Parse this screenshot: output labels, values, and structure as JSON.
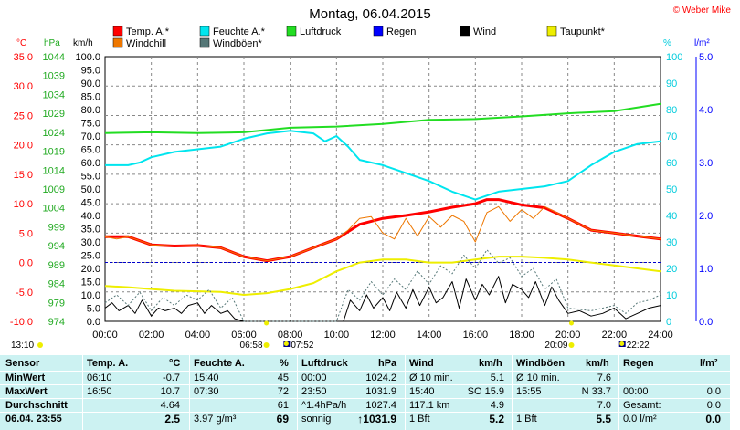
{
  "chart_data": {
    "type": "line",
    "title": "Montag, 06.04.2015",
    "watermark": "© Weber Mike",
    "axis_units": {
      "temp": "°C",
      "pressure": "hPa",
      "wind": "km/h",
      "humidity": "%",
      "rain": "l/m²"
    },
    "x_ticks": [
      "00:00",
      "02:00",
      "04:00",
      "06:00",
      "08:00",
      "10:00",
      "12:00",
      "14:00",
      "16:00",
      "18:00",
      "20:00",
      "22:00",
      "24:00"
    ],
    "y_temp_ticks": [
      "35.0",
      "30.0",
      "25.0",
      "20.0",
      "15.0",
      "10.0",
      "5.0",
      "0.0",
      "-5.0",
      "-10.0"
    ],
    "y_temp_range": [
      -10,
      35
    ],
    "y_pressure_ticks": [
      "1044",
      "1039",
      "1034",
      "1029",
      "1024",
      "1019",
      "1014",
      "1009",
      "1004",
      "999",
      "994",
      "989",
      "984",
      "979",
      "974"
    ],
    "y_pressure_range": [
      974,
      1044
    ],
    "y_wind_ticks": [
      "100.0",
      "95.0",
      "90.0",
      "85.0",
      "80.0",
      "75.0",
      "70.0",
      "65.0",
      "60.0",
      "55.0",
      "50.0",
      "45.0",
      "40.0",
      "35.0",
      "30.0",
      "25.0",
      "20.0",
      "15.0",
      "10.0",
      "5.0",
      "0.0"
    ],
    "y_wind_range": [
      0,
      100
    ],
    "y_humidity_ticks": [
      "100",
      "90",
      "80",
      "70",
      "60",
      "50",
      "40",
      "30",
      "20",
      "10",
      "0"
    ],
    "y_humidity_range": [
      0,
      100
    ],
    "y_rain_ticks": [
      "5.0",
      "4.0",
      "3.0",
      "2.0",
      "1.0",
      "0.0"
    ],
    "y_rain_range": [
      0,
      5
    ],
    "zero_line_temp": 0,
    "legend": [
      {
        "name": "Temp. A.*",
        "color": "#ff0000"
      },
      {
        "name": "Feuchte A.*",
        "color": "#00e5ee"
      },
      {
        "name": "Luftdruck",
        "color": "#22dd22"
      },
      {
        "name": "Regen",
        "color": "#0000ff"
      },
      {
        "name": "Wind",
        "color": "#000000"
      },
      {
        "name": "Taupunkt*",
        "color": "#eeee00"
      },
      {
        "name": "Windchill",
        "color": "#ee7700"
      },
      {
        "name": "Windböen*",
        "color": "#557777"
      }
    ],
    "series": [
      {
        "name": "Temp. A.*",
        "axis": "temp",
        "color": "#ff0000",
        "width": 3,
        "x": [
          0,
          1,
          2,
          3,
          4,
          5,
          6,
          7,
          8,
          9,
          10,
          11,
          12,
          13,
          14,
          15,
          16,
          16.5,
          17,
          18,
          19,
          20,
          21,
          22,
          23,
          24
        ],
        "y": [
          4.4,
          4.4,
          3.0,
          2.8,
          2.9,
          2.5,
          1.0,
          0.3,
          1.0,
          2.5,
          4.0,
          6.5,
          7.5,
          8.0,
          8.6,
          9.4,
          10.0,
          10.7,
          10.7,
          9.8,
          9.3,
          7.5,
          5.5,
          5.0,
          4.5,
          4.0
        ]
      },
      {
        "name": "Windchill",
        "axis": "temp",
        "color": "#ee7700",
        "width": 1,
        "x": [
          0,
          0.5,
          1,
          2,
          3,
          4,
          5,
          6,
          7,
          8,
          9,
          10,
          10.5,
          11,
          11.5,
          12,
          12.5,
          13,
          13.5,
          14,
          14.5,
          15,
          15.5,
          16,
          16.5,
          17,
          17.5,
          18,
          18.5,
          19,
          19.5,
          20,
          21,
          22,
          23,
          24
        ],
        "y": [
          4.4,
          4.0,
          4.4,
          3.0,
          2.8,
          2.9,
          2.5,
          1.0,
          0.3,
          1.0,
          2.5,
          4.0,
          5.5,
          7.5,
          7.8,
          5.0,
          4.0,
          7.5,
          4.5,
          7.8,
          6.0,
          8.0,
          7.0,
          3.5,
          8.5,
          9.5,
          7.0,
          9.0,
          7.5,
          9.5,
          8.5,
          7.5,
          5.5,
          5.0,
          4.5,
          4.0
        ]
      },
      {
        "name": "Taupunkt*",
        "axis": "temp",
        "color": "#eeee00",
        "width": 2,
        "x": [
          0,
          1,
          2,
          3,
          4,
          5,
          6,
          7,
          8,
          9,
          10,
          11,
          12,
          13,
          14,
          15,
          16,
          17,
          18,
          19,
          20,
          21,
          22,
          23,
          24
        ],
        "y": [
          -4.0,
          -4.2,
          -4.5,
          -4.8,
          -4.9,
          -5.0,
          -5.5,
          -5.2,
          -4.5,
          -3.5,
          -1.5,
          0.0,
          0.5,
          0.5,
          0.0,
          0.0,
          0.5,
          1.0,
          1.0,
          0.8,
          0.5,
          0.0,
          -0.5,
          -1.0,
          -1.5
        ]
      },
      {
        "name": "Feuchte A.*",
        "axis": "humidity",
        "color": "#00e5ee",
        "width": 2,
        "x": [
          0,
          1,
          1.5,
          2,
          3,
          4,
          5,
          6,
          7,
          8,
          9,
          9.5,
          10,
          10.5,
          11,
          12,
          13,
          14,
          15,
          16,
          17,
          18,
          19,
          20,
          21,
          22,
          23,
          24
        ],
        "y": [
          59,
          59,
          60,
          62,
          64,
          65,
          66,
          69,
          71,
          72,
          71,
          68,
          70,
          66,
          61,
          59,
          56,
          53,
          49,
          46,
          49,
          50,
          51,
          53,
          59,
          64,
          67,
          68
        ]
      },
      {
        "name": "Luftdruck",
        "axis": "pressure",
        "color": "#22dd22",
        "width": 2,
        "x": [
          0,
          2,
          4,
          6,
          8,
          10,
          12,
          14,
          16,
          18,
          20,
          22,
          24
        ],
        "y": [
          1023.8,
          1024.0,
          1023.8,
          1024.0,
          1025.2,
          1025.5,
          1026.2,
          1027.3,
          1027.5,
          1028.2,
          1029.0,
          1029.6,
          1031.5
        ]
      },
      {
        "name": "Wind",
        "axis": "wind",
        "color": "#000000",
        "width": 1,
        "x": [
          0,
          0.3,
          0.6,
          1,
          1.3,
          1.6,
          2,
          2.3,
          2.6,
          3,
          3.3,
          3.6,
          4,
          4.3,
          4.6,
          5,
          5.3,
          5.6,
          6,
          6.5,
          7,
          8,
          9,
          10,
          10.3,
          10.6,
          11,
          11.3,
          11.6,
          12,
          12.3,
          12.6,
          13,
          13.3,
          13.6,
          14,
          14.3,
          14.6,
          15,
          15.3,
          15.6,
          16,
          16.3,
          16.6,
          17,
          17.3,
          17.6,
          18,
          18.3,
          18.6,
          19,
          19.3,
          19.6,
          20,
          20.5,
          21,
          21.5,
          22,
          22.5,
          23,
          23.5,
          24
        ],
        "y": [
          5,
          7,
          4,
          6,
          3,
          8,
          2,
          5,
          4,
          5,
          3,
          6,
          7,
          3,
          6,
          3,
          4,
          1,
          0,
          0,
          0,
          0,
          0,
          0,
          0,
          8,
          4,
          10,
          5,
          9,
          4,
          11,
          5,
          12,
          6,
          13,
          7,
          9,
          15,
          5,
          16,
          8,
          14,
          10,
          17,
          7,
          14,
          12,
          9,
          15,
          6,
          13,
          8,
          3,
          4,
          2,
          3,
          5,
          1,
          3,
          5,
          6
        ]
      },
      {
        "name": "Windböen*",
        "axis": "wind",
        "color": "#557777",
        "width": 1,
        "dash": "2,2",
        "x": [
          0,
          0.5,
          1,
          1.5,
          2,
          2.5,
          3,
          3.5,
          4,
          4.5,
          5,
          5.5,
          6,
          7,
          8,
          9,
          10,
          10.5,
          11,
          11.5,
          12,
          12.5,
          13,
          13.5,
          14,
          14.5,
          15,
          15.5,
          16,
          16.5,
          17,
          17.5,
          18,
          18.5,
          19,
          19.5,
          20,
          21,
          22,
          22.5,
          23,
          23.5,
          24
        ],
        "y": [
          7,
          10,
          6,
          11,
          4,
          9,
          6,
          10,
          8,
          12,
          5,
          9,
          0,
          0,
          0,
          0,
          0,
          12,
          8,
          15,
          10,
          16,
          12,
          19,
          14,
          21,
          18,
          25,
          20,
          27,
          22,
          24,
          17,
          20,
          12,
          16,
          5,
          4,
          6,
          3,
          7,
          8,
          10
        ]
      }
    ],
    "time_markers": [
      {
        "label": "06:58",
        "icon": "sunrise",
        "x": 6.97
      },
      {
        "label": "07:52",
        "icon": "moonset",
        "x": 7.87
      },
      {
        "label": "20:09",
        "icon": "sunset",
        "x": 20.15
      },
      {
        "label": "22:22",
        "icon": "moonrise",
        "x": 22.37
      }
    ],
    "current_time": "13:10",
    "grid": true
  },
  "stats": {
    "headers": {
      "sensor": "Sensor",
      "temp": "Temp. A.",
      "temp_unit": "°C",
      "hum": "Feuchte A.",
      "hum_unit": "%",
      "press": "Luftdruck",
      "press_unit": "hPa",
      "wind": "Wind",
      "wind_unit": "km/h",
      "gust": "Windböen",
      "gust_unit": "km/h",
      "rain": "Regen",
      "rain_unit": "l/m²"
    },
    "rows": [
      {
        "label": "MinWert",
        "temp_t": "06:10",
        "temp_v": "-0.7",
        "hum_t": "15:40",
        "hum_v": "45",
        "press_t": "00:00",
        "press_v": "1024.2",
        "wind_t": "Ø 10 min.",
        "wind_v": "5.1",
        "gust_t": "Ø 10 min.",
        "gust_v": "7.6",
        "rain_t": "",
        "rain_v": ""
      },
      {
        "label": "MaxWert",
        "temp_t": "16:50",
        "temp_v": "10.7",
        "hum_t": "07:30",
        "hum_v": "72",
        "press_t": "23:50",
        "press_v": "1031.9",
        "wind_t": "15:40",
        "wind_m": "SO 15.9",
        "wind_v": "",
        "gust_t": "15:55",
        "gust_v": "N 33.7",
        "rain_t": "00:00",
        "rain_v": "0.0"
      },
      {
        "label": "Durchschnitt",
        "temp_t": "",
        "temp_v": "4.64",
        "hum_t": "",
        "hum_v": "61",
        "press_t": "^1.4hPa/h",
        "press_v": "1027.4",
        "wind_t": "117.1 km",
        "wind_v": "4.9",
        "gust_t": "",
        "gust_v": "7.0",
        "rain_t": "Gesamt:",
        "rain_v": "0.0"
      },
      {
        "label": "06.04. 23:55",
        "temp_t": "",
        "temp_v": "2.5",
        "hum_t": "3.97 g/m³",
        "hum_v": "69",
        "press_t": "sonnig",
        "press_v": "↑1031.9",
        "wind_t": "1 Bft",
        "wind_v": "5.2",
        "gust_t": "1 Bft",
        "gust_v": "5.5",
        "rain_t": "0.0 l/m²",
        "rain_v": "0.0"
      }
    ]
  }
}
